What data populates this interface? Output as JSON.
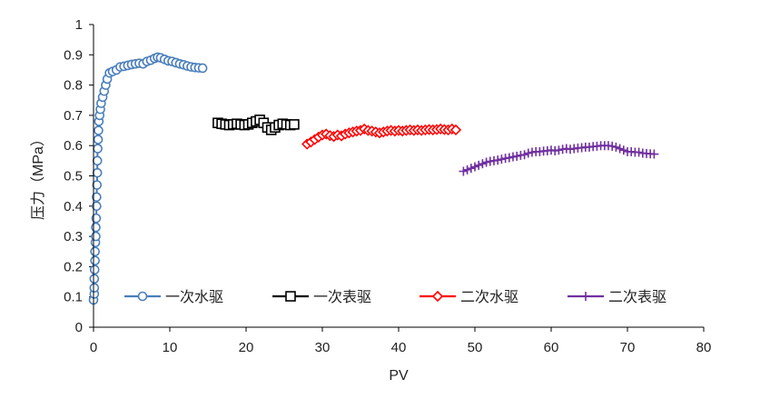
{
  "chart_data": {
    "type": "scatter",
    "title": "",
    "xlabel": "PV",
    "ylabel": "压力（MPa）",
    "xlim": [
      0,
      80
    ],
    "ylim": [
      0,
      1
    ],
    "xticks": [
      0,
      10,
      20,
      30,
      40,
      50,
      60,
      70,
      80
    ],
    "yticks": [
      0,
      0.1,
      0.2,
      0.3,
      0.4,
      0.5,
      0.6,
      0.7,
      0.8,
      0.9,
      1
    ],
    "grid": false,
    "legend": "bottom-inside",
    "series": [
      {
        "name": "一次水驱",
        "color": "#4a7ebb",
        "marker": "circle",
        "points": [
          [
            0.0,
            0.09
          ],
          [
            0.1,
            0.11
          ],
          [
            0.1,
            0.13
          ],
          [
            0.1,
            0.16
          ],
          [
            0.15,
            0.19
          ],
          [
            0.2,
            0.22
          ],
          [
            0.2,
            0.25
          ],
          [
            0.25,
            0.28
          ],
          [
            0.3,
            0.3
          ],
          [
            0.3,
            0.33
          ],
          [
            0.35,
            0.36
          ],
          [
            0.4,
            0.4
          ],
          [
            0.4,
            0.43
          ],
          [
            0.45,
            0.47
          ],
          [
            0.5,
            0.51
          ],
          [
            0.5,
            0.55
          ],
          [
            0.55,
            0.59
          ],
          [
            0.6,
            0.62
          ],
          [
            0.65,
            0.65
          ],
          [
            0.7,
            0.68
          ],
          [
            0.8,
            0.7
          ],
          [
            0.9,
            0.72
          ],
          [
            1.0,
            0.74
          ],
          [
            1.2,
            0.76
          ],
          [
            1.4,
            0.78
          ],
          [
            1.6,
            0.8
          ],
          [
            1.8,
            0.82
          ],
          [
            2.1,
            0.84
          ],
          [
            2.5,
            0.845
          ],
          [
            3.0,
            0.85
          ],
          [
            3.5,
            0.86
          ],
          [
            4.0,
            0.862
          ],
          [
            4.5,
            0.865
          ],
          [
            5.0,
            0.868
          ],
          [
            5.5,
            0.87
          ],
          [
            6.0,
            0.872
          ],
          [
            6.5,
            0.87
          ],
          [
            7.0,
            0.878
          ],
          [
            7.5,
            0.882
          ],
          [
            8.0,
            0.888
          ],
          [
            8.4,
            0.892
          ],
          [
            8.8,
            0.89
          ],
          [
            9.3,
            0.885
          ],
          [
            9.8,
            0.88
          ],
          [
            10.3,
            0.878
          ],
          [
            10.8,
            0.874
          ],
          [
            11.3,
            0.87
          ],
          [
            11.8,
            0.867
          ],
          [
            12.3,
            0.863
          ],
          [
            12.8,
            0.86
          ],
          [
            13.3,
            0.858
          ],
          [
            13.8,
            0.857
          ],
          [
            14.3,
            0.856
          ]
        ]
      },
      {
        "name": "一次表驱",
        "color": "#000000",
        "marker": "square",
        "points": [
          [
            16.3,
            0.675
          ],
          [
            16.8,
            0.672
          ],
          [
            17.3,
            0.67
          ],
          [
            17.8,
            0.668
          ],
          [
            18.3,
            0.67
          ],
          [
            18.8,
            0.672
          ],
          [
            19.3,
            0.67
          ],
          [
            19.8,
            0.668
          ],
          [
            20.3,
            0.67
          ],
          [
            20.8,
            0.675
          ],
          [
            21.3,
            0.68
          ],
          [
            21.8,
            0.685
          ],
          [
            22.3,
            0.675
          ],
          [
            22.8,
            0.66
          ],
          [
            23.3,
            0.652
          ],
          [
            23.8,
            0.66
          ],
          [
            24.3,
            0.668
          ],
          [
            24.8,
            0.672
          ],
          [
            25.3,
            0.67
          ],
          [
            25.8,
            0.668
          ],
          [
            26.3,
            0.67
          ]
        ]
      },
      {
        "name": "二次水驱",
        "color": "#ff0000",
        "marker": "diamond",
        "points": [
          [
            28.0,
            0.605
          ],
          [
            28.5,
            0.612
          ],
          [
            29.0,
            0.62
          ],
          [
            29.5,
            0.628
          ],
          [
            30.0,
            0.635
          ],
          [
            30.5,
            0.638
          ],
          [
            31.0,
            0.633
          ],
          [
            31.5,
            0.63
          ],
          [
            32.0,
            0.635
          ],
          [
            32.5,
            0.632
          ],
          [
            33.0,
            0.638
          ],
          [
            33.5,
            0.642
          ],
          [
            34.0,
            0.645
          ],
          [
            34.5,
            0.648
          ],
          [
            35.0,
            0.65
          ],
          [
            35.5,
            0.655
          ],
          [
            36.0,
            0.65
          ],
          [
            36.5,
            0.648
          ],
          [
            37.0,
            0.645
          ],
          [
            37.5,
            0.642
          ],
          [
            38.0,
            0.645
          ],
          [
            38.5,
            0.648
          ],
          [
            39.0,
            0.65
          ],
          [
            39.5,
            0.648
          ],
          [
            40.0,
            0.65
          ],
          [
            40.5,
            0.648
          ],
          [
            41.0,
            0.65
          ],
          [
            41.5,
            0.652
          ],
          [
            42.0,
            0.65
          ],
          [
            42.5,
            0.652
          ],
          [
            43.0,
            0.65
          ],
          [
            43.5,
            0.652
          ],
          [
            44.0,
            0.653
          ],
          [
            44.5,
            0.652
          ],
          [
            45.0,
            0.653
          ],
          [
            45.5,
            0.655
          ],
          [
            46.0,
            0.653
          ],
          [
            46.5,
            0.652
          ],
          [
            47.0,
            0.655
          ],
          [
            47.5,
            0.652
          ]
        ]
      },
      {
        "name": "二次表驱",
        "color": "#7030a0",
        "marker": "plus",
        "points": [
          [
            48.5,
            0.515
          ],
          [
            49.0,
            0.52
          ],
          [
            49.5,
            0.525
          ],
          [
            50.0,
            0.53
          ],
          [
            50.5,
            0.535
          ],
          [
            51.0,
            0.54
          ],
          [
            51.5,
            0.545
          ],
          [
            52.0,
            0.548
          ],
          [
            52.5,
            0.55
          ],
          [
            53.0,
            0.552
          ],
          [
            53.5,
            0.555
          ],
          [
            54.0,
            0.558
          ],
          [
            54.5,
            0.56
          ],
          [
            55.0,
            0.563
          ],
          [
            55.5,
            0.565
          ],
          [
            56.0,
            0.568
          ],
          [
            56.5,
            0.57
          ],
          [
            57.0,
            0.575
          ],
          [
            57.5,
            0.578
          ],
          [
            58.0,
            0.58
          ],
          [
            58.5,
            0.58
          ],
          [
            59.0,
            0.582
          ],
          [
            59.5,
            0.583
          ],
          [
            60.0,
            0.585
          ],
          [
            60.5,
            0.583
          ],
          [
            61.0,
            0.585
          ],
          [
            61.5,
            0.588
          ],
          [
            62.0,
            0.59
          ],
          [
            62.5,
            0.588
          ],
          [
            63.0,
            0.59
          ],
          [
            63.5,
            0.592
          ],
          [
            64.0,
            0.593
          ],
          [
            64.5,
            0.595
          ],
          [
            65.0,
            0.595
          ],
          [
            65.5,
            0.597
          ],
          [
            66.0,
            0.598
          ],
          [
            66.5,
            0.6
          ],
          [
            67.0,
            0.6
          ],
          [
            67.5,
            0.6
          ],
          [
            68.0,
            0.598
          ],
          [
            68.5,
            0.595
          ],
          [
            69.0,
            0.59
          ],
          [
            69.5,
            0.585
          ],
          [
            70.0,
            0.58
          ],
          [
            70.5,
            0.58
          ],
          [
            71.0,
            0.578
          ],
          [
            71.5,
            0.578
          ],
          [
            72.0,
            0.575
          ],
          [
            72.5,
            0.574
          ],
          [
            73.0,
            0.573
          ],
          [
            73.5,
            0.572
          ]
        ]
      }
    ]
  }
}
